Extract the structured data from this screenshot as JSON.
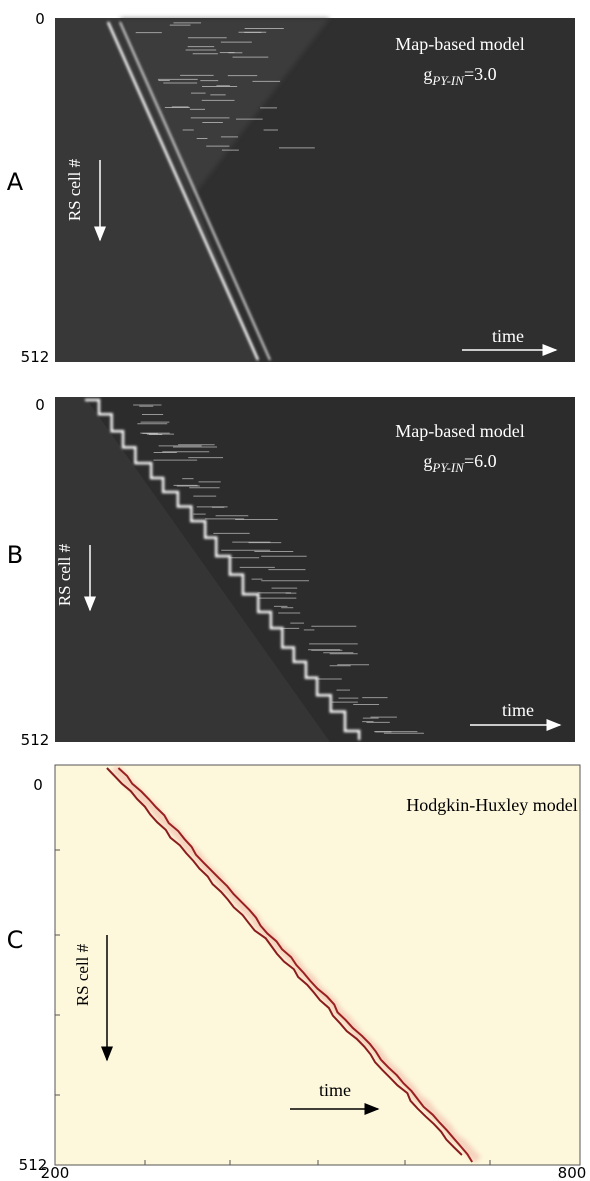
{
  "panels": [
    {
      "label": "A",
      "y_top": 0,
      "y_bottom": 512,
      "title": "Map-based model",
      "param": {
        "symbol": "g",
        "subscript": "PY-IN",
        "value": "=3.0"
      },
      "y_axis_label": "RS cell #",
      "x_axis_label": "time"
    },
    {
      "label": "B",
      "y_top": 0,
      "y_bottom": 512,
      "title": "Map-based model",
      "param": {
        "symbol": "g",
        "subscript": "PY-IN",
        "value": "=6.0"
      },
      "y_axis_label": "RS cell #",
      "x_axis_label": "time"
    },
    {
      "label": "C",
      "y_top": 0,
      "y_bottom": 512,
      "title": "Hodgkin-Huxley model",
      "y_axis_label": "RS cell #",
      "x_axis_label": "time",
      "x_left": 200,
      "x_right": 800
    }
  ]
}
